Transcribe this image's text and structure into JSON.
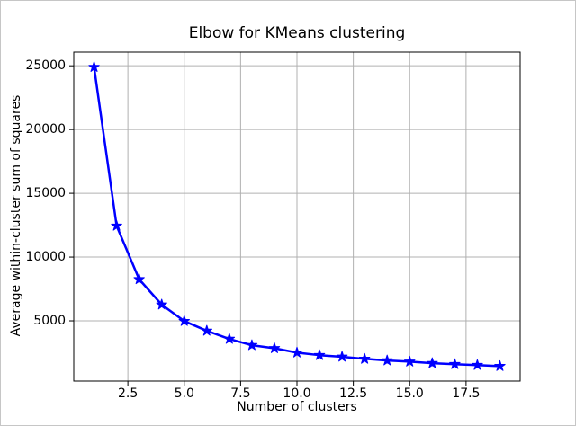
{
  "colors": {
    "line": "#0000ff",
    "grid": "#b0b0b0",
    "spine": "#000000",
    "background": "#ffffff",
    "figure_border": "#c6c6c6",
    "text": "#000000"
  },
  "chart_data": {
    "type": "line",
    "title": "Elbow for KMeans clustering",
    "xlabel": "Number of clusters",
    "ylabel": "Average within-cluster sum of squares",
    "x": [
      1,
      2,
      3,
      4,
      5,
      6,
      7,
      8,
      9,
      10,
      11,
      12,
      13,
      14,
      15,
      16,
      17,
      18,
      19
    ],
    "y": [
      24900,
      12450,
      8260,
      6270,
      4980,
      4220,
      3580,
      3090,
      2850,
      2510,
      2310,
      2180,
      2020,
      1890,
      1800,
      1680,
      1600,
      1530,
      1450
    ],
    "xlim": [
      0.1,
      19.9
    ],
    "ylim": [
      280,
      26070
    ],
    "xticks": [
      2.5,
      5.0,
      7.5,
      10.0,
      12.5,
      15.0,
      17.5
    ],
    "xtick_labels": [
      "2.5",
      "5.0",
      "7.5",
      "10.0",
      "12.5",
      "15.0",
      "17.5"
    ],
    "yticks": [
      5000,
      10000,
      15000,
      20000,
      25000
    ],
    "ytick_labels": [
      "5000",
      "10000",
      "15000",
      "20000",
      "25000"
    ],
    "grid": true,
    "legend": null,
    "marker": "star",
    "marker_size": 5,
    "line_width": 2.5
  }
}
